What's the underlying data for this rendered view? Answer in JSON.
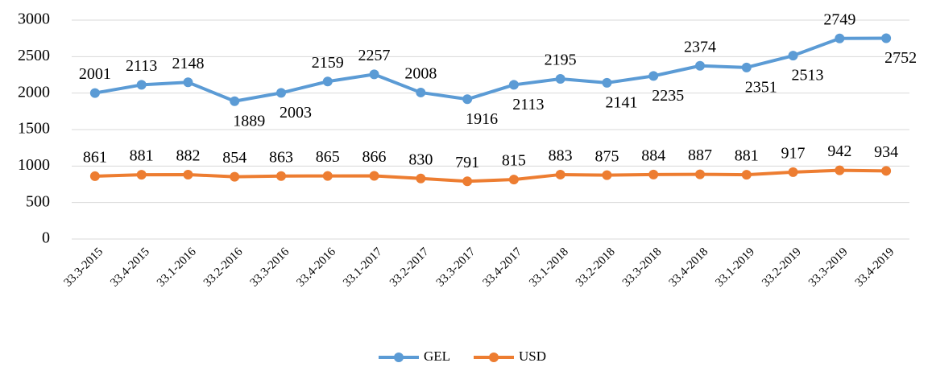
{
  "chart_data": {
    "type": "line",
    "categories": [
      "33.3-2015",
      "33.4-2015",
      "33.1-2016",
      "33.2-2016",
      "33.3-2016",
      "33.4-2016",
      "33.1-2017",
      "33.2-2017",
      "33.3-2017",
      "33.4-2017",
      "33.1-2018",
      "33.2-2018",
      "33.3-2018",
      "33.4-2018",
      "33.1-2019",
      "33.2-2019",
      "33.3-2019",
      "33.4-2019"
    ],
    "series": [
      {
        "name": "GEL",
        "color": "#5b9bd5",
        "values": [
          2001,
          2113,
          2148,
          1889,
          2003,
          2159,
          2257,
          2008,
          1916,
          2113,
          2195,
          2141,
          2235,
          2374,
          2351,
          2513,
          2749,
          2752
        ]
      },
      {
        "name": "USD",
        "color": "#ed7d31",
        "values": [
          861,
          881,
          882,
          854,
          863,
          865,
          866,
          830,
          791,
          815,
          883,
          875,
          884,
          887,
          881,
          917,
          942,
          934
        ]
      }
    ],
    "ylim": [
      0,
      3000
    ],
    "yticks": [
      0,
      500,
      1000,
      1500,
      2000,
      2500,
      3000
    ],
    "grid": true,
    "legend": "bottom"
  }
}
